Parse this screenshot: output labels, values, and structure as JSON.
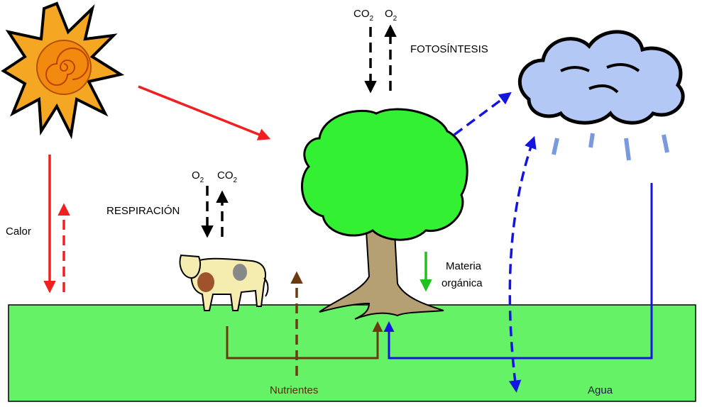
{
  "photosynthesis": {
    "label": "FOTOSÍNTESIS",
    "gases": [
      {
        "base": "CO",
        "sub": "2"
      },
      {
        "base": "O",
        "sub": "2"
      }
    ]
  },
  "respiration": {
    "label": "RESPIRACIÓN",
    "gases": [
      {
        "base": "O",
        "sub": "2"
      },
      {
        "base": "CO",
        "sub": "2"
      }
    ]
  },
  "heat": "Calor",
  "organic_matter": [
    "Materia",
    "orgánica"
  ],
  "nutrients": "Nutrientes",
  "water": "Agua"
}
